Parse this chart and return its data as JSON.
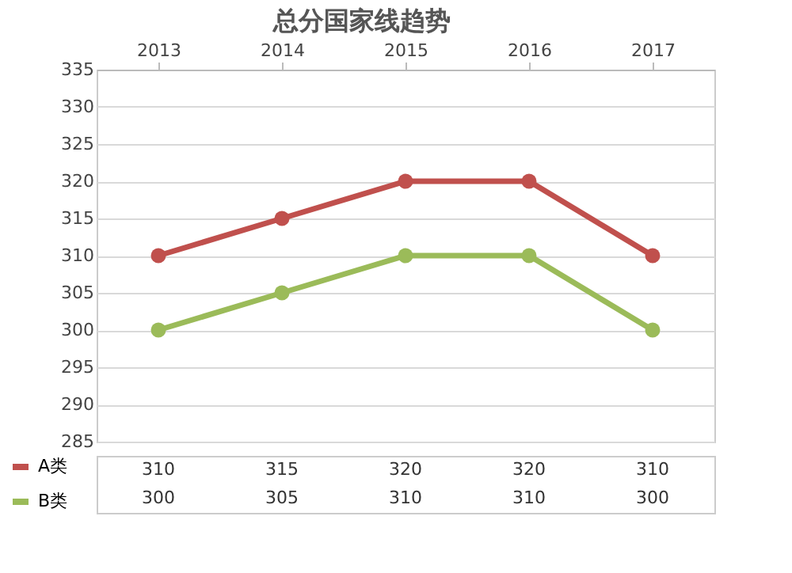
{
  "chart_data": {
    "type": "line",
    "title": "总分国家线趋势",
    "categories": [
      "2013",
      "2014",
      "2015",
      "2016",
      "2017"
    ],
    "series": [
      {
        "name": "A类",
        "color": "#c0504d",
        "values": [
          310,
          315,
          320,
          320,
          310
        ]
      },
      {
        "name": "B类",
        "color": "#9bbb59",
        "values": [
          300,
          305,
          310,
          310,
          300
        ]
      }
    ],
    "ylim": [
      285,
      335
    ],
    "yticks": [
      285,
      290,
      295,
      300,
      305,
      310,
      315,
      320,
      325,
      330,
      335
    ],
    "grid": "y",
    "marker": "circle",
    "line_style": "solid",
    "legend": "bottom",
    "data_labels": true
  }
}
